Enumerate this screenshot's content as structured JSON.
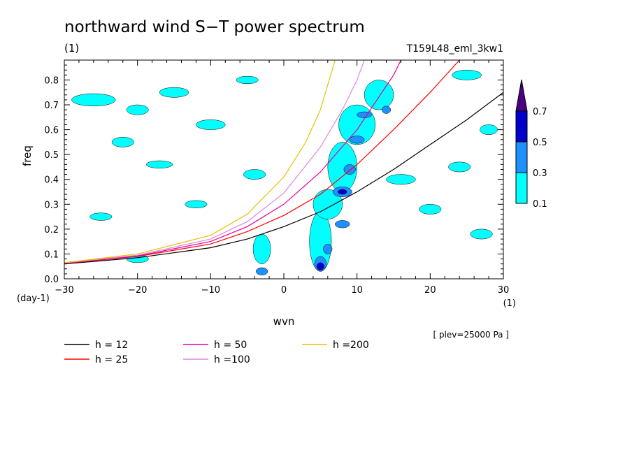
{
  "chart_data": {
    "type": "contour",
    "title": "northward wind S−T power spectrum",
    "units_label": "(1)",
    "run_label": "T159L48_eml_3kw1",
    "xlabel": "wvn",
    "ylabel": "freq",
    "x_unit_label": "(1)",
    "y_unit_label": "(day-1)",
    "level_note": "[ plev=25000 Pa ]",
    "xlim": [
      -30,
      30
    ],
    "ylim": [
      0,
      0.88
    ],
    "x_ticks": [
      "−30",
      "−20",
      "−10",
      "0",
      "10",
      "20",
      "30"
    ],
    "x_tick_values": [
      -30,
      -20,
      -10,
      0,
      10,
      20,
      30
    ],
    "y_ticks": [
      "0.0",
      "0.1",
      "0.2",
      "0.3",
      "0.4",
      "0.5",
      "0.6",
      "0.7",
      "0.8"
    ],
    "y_tick_values": [
      0,
      0.1,
      0.2,
      0.3,
      0.4,
      0.5,
      0.6,
      0.7,
      0.8
    ],
    "colorbar": {
      "levels": [
        "0.1",
        "0.3",
        "0.5",
        "0.7"
      ],
      "colors": [
        "#00ffff",
        "#1e90ff",
        "#0000cd",
        "#4b0082"
      ]
    },
    "dispersion_curves": [
      {
        "label": "h = 12",
        "color": "#000000",
        "points": [
          [
            -30,
            0.06
          ],
          [
            -20,
            0.085
          ],
          [
            -10,
            0.125
          ],
          [
            -5,
            0.16
          ],
          [
            0,
            0.21
          ],
          [
            5,
            0.27
          ],
          [
            10,
            0.35
          ],
          [
            15,
            0.44
          ],
          [
            20,
            0.54
          ],
          [
            25,
            0.64
          ],
          [
            30,
            0.75
          ]
        ]
      },
      {
        "label": "h = 25",
        "color": "#ff0000",
        "points": [
          [
            -30,
            0.062
          ],
          [
            -20,
            0.09
          ],
          [
            -10,
            0.14
          ],
          [
            -5,
            0.19
          ],
          [
            0,
            0.255
          ],
          [
            5,
            0.34
          ],
          [
            10,
            0.46
          ],
          [
            15,
            0.6
          ],
          [
            20,
            0.75
          ],
          [
            24,
            0.88
          ]
        ]
      },
      {
        "label": "h = 50",
        "color": "#e6009e",
        "points": [
          [
            -30,
            0.063
          ],
          [
            -20,
            0.092
          ],
          [
            -10,
            0.15
          ],
          [
            -5,
            0.21
          ],
          [
            0,
            0.3
          ],
          [
            5,
            0.43
          ],
          [
            10,
            0.6
          ],
          [
            15,
            0.82
          ],
          [
            16,
            0.88
          ]
        ]
      },
      {
        "label": "h =100",
        "color": "#dd88dd",
        "points": [
          [
            -30,
            0.064
          ],
          [
            -20,
            0.095
          ],
          [
            -10,
            0.16
          ],
          [
            -5,
            0.23
          ],
          [
            0,
            0.345
          ],
          [
            5,
            0.53
          ],
          [
            8,
            0.68
          ],
          [
            10,
            0.8
          ],
          [
            11,
            0.88
          ]
        ]
      },
      {
        "label": "h =200",
        "color": "#e6c000",
        "points": [
          [
            -30,
            0.065
          ],
          [
            -20,
            0.1
          ],
          [
            -10,
            0.175
          ],
          [
            -5,
            0.26
          ],
          [
            0,
            0.41
          ],
          [
            3,
            0.55
          ],
          [
            5,
            0.68
          ],
          [
            7,
            0.88
          ]
        ]
      }
    ],
    "contour_patches": [
      {
        "level": 0,
        "x": -26,
        "y": 0.72,
        "rx": 3,
        "ry": 0.025
      },
      {
        "level": 0,
        "x": -20,
        "y": 0.68,
        "rx": 1.5,
        "ry": 0.02
      },
      {
        "level": 0,
        "x": -15,
        "y": 0.75,
        "rx": 2,
        "ry": 0.02
      },
      {
        "level": 0,
        "x": -22,
        "y": 0.55,
        "rx": 1.5,
        "ry": 0.02
      },
      {
        "level": 0,
        "x": -17,
        "y": 0.46,
        "rx": 1.8,
        "ry": 0.015
      },
      {
        "level": 0,
        "x": -10,
        "y": 0.62,
        "rx": 2,
        "ry": 0.02
      },
      {
        "level": 0,
        "x": -5,
        "y": 0.8,
        "rx": 1.5,
        "ry": 0.015
      },
      {
        "level": 0,
        "x": -12,
        "y": 0.3,
        "rx": 1.5,
        "ry": 0.015
      },
      {
        "level": 0,
        "x": -4,
        "y": 0.42,
        "rx": 1.5,
        "ry": 0.02
      },
      {
        "level": 0,
        "x": -3,
        "y": 0.12,
        "rx": 1.2,
        "ry": 0.06
      },
      {
        "level": 0,
        "x": 5,
        "y": 0.15,
        "rx": 1.5,
        "ry": 0.12
      },
      {
        "level": 0,
        "x": 6,
        "y": 0.3,
        "rx": 2,
        "ry": 0.06
      },
      {
        "level": 0,
        "x": 8,
        "y": 0.45,
        "rx": 2,
        "ry": 0.1
      },
      {
        "level": 0,
        "x": 10,
        "y": 0.62,
        "rx": 2.5,
        "ry": 0.08
      },
      {
        "level": 0,
        "x": 13,
        "y": 0.74,
        "rx": 2,
        "ry": 0.06
      },
      {
        "level": 0,
        "x": 16,
        "y": 0.4,
        "rx": 2,
        "ry": 0.02
      },
      {
        "level": 0,
        "x": 20,
        "y": 0.28,
        "rx": 1.5,
        "ry": 0.02
      },
      {
        "level": 0,
        "x": 24,
        "y": 0.45,
        "rx": 1.5,
        "ry": 0.02
      },
      {
        "level": 0,
        "x": 27,
        "y": 0.18,
        "rx": 1.5,
        "ry": 0.02
      },
      {
        "level": 0,
        "x": 25,
        "y": 0.82,
        "rx": 2,
        "ry": 0.02
      },
      {
        "level": 0,
        "x": 28,
        "y": 0.6,
        "rx": 1.2,
        "ry": 0.02
      },
      {
        "level": 0,
        "x": -25,
        "y": 0.25,
        "rx": 1.5,
        "ry": 0.015
      },
      {
        "level": 0,
        "x": -20,
        "y": 0.08,
        "rx": 1.5,
        "ry": 0.015
      },
      {
        "level": 1,
        "x": -3,
        "y": 0.03,
        "rx": 0.8,
        "ry": 0.015
      },
      {
        "level": 1,
        "x": 5,
        "y": 0.06,
        "rx": 0.8,
        "ry": 0.03
      },
      {
        "level": 1,
        "x": 6,
        "y": 0.12,
        "rx": 0.6,
        "ry": 0.02
      },
      {
        "level": 1,
        "x": 8,
        "y": 0.22,
        "rx": 1.0,
        "ry": 0.015
      },
      {
        "level": 1,
        "x": 8,
        "y": 0.35,
        "rx": 1.3,
        "ry": 0.02
      },
      {
        "level": 1,
        "x": 9,
        "y": 0.44,
        "rx": 0.8,
        "ry": 0.02
      },
      {
        "level": 1,
        "x": 10,
        "y": 0.56,
        "rx": 1.0,
        "ry": 0.015
      },
      {
        "level": 1,
        "x": 11,
        "y": 0.66,
        "rx": 1.0,
        "ry": 0.012
      },
      {
        "level": 1,
        "x": 14,
        "y": 0.68,
        "rx": 0.6,
        "ry": 0.015
      },
      {
        "level": 2,
        "x": 5,
        "y": 0.05,
        "rx": 0.5,
        "ry": 0.015
      },
      {
        "level": 2,
        "x": 8,
        "y": 0.35,
        "rx": 0.6,
        "ry": 0.01
      }
    ]
  },
  "legend": [
    {
      "label": "h = 12",
      "color": "#000000"
    },
    {
      "label": "h = 25",
      "color": "#ff0000"
    },
    {
      "label": "h = 50",
      "color": "#e6009e"
    },
    {
      "label": "h =100",
      "color": "#dd88dd"
    },
    {
      "label": "h =200",
      "color": "#e6c000"
    }
  ]
}
